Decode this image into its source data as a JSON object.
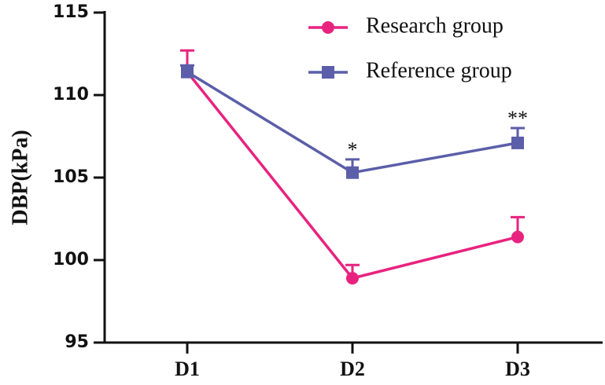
{
  "chart_data": {
    "type": "line",
    "ylabel": "DBP(kPa)",
    "categories": [
      "D1",
      "D2",
      "D3"
    ],
    "series": [
      {
        "name": "Research group",
        "color": "#e8237f",
        "marker": "circle",
        "values": [
          111.4,
          98.9,
          101.4
        ],
        "errors": [
          1.3,
          0.8,
          1.2
        ]
      },
      {
        "name": "Reference group",
        "color": "#5b5ea8",
        "marker": "square",
        "values": [
          111.4,
          105.3,
          107.1
        ],
        "errors": [
          0.4,
          0.8,
          0.9
        ]
      }
    ],
    "annotations": [
      null,
      "*",
      "**"
    ],
    "ylim": [
      95,
      115
    ],
    "yticks": [
      95,
      100,
      105,
      110,
      115
    ]
  }
}
